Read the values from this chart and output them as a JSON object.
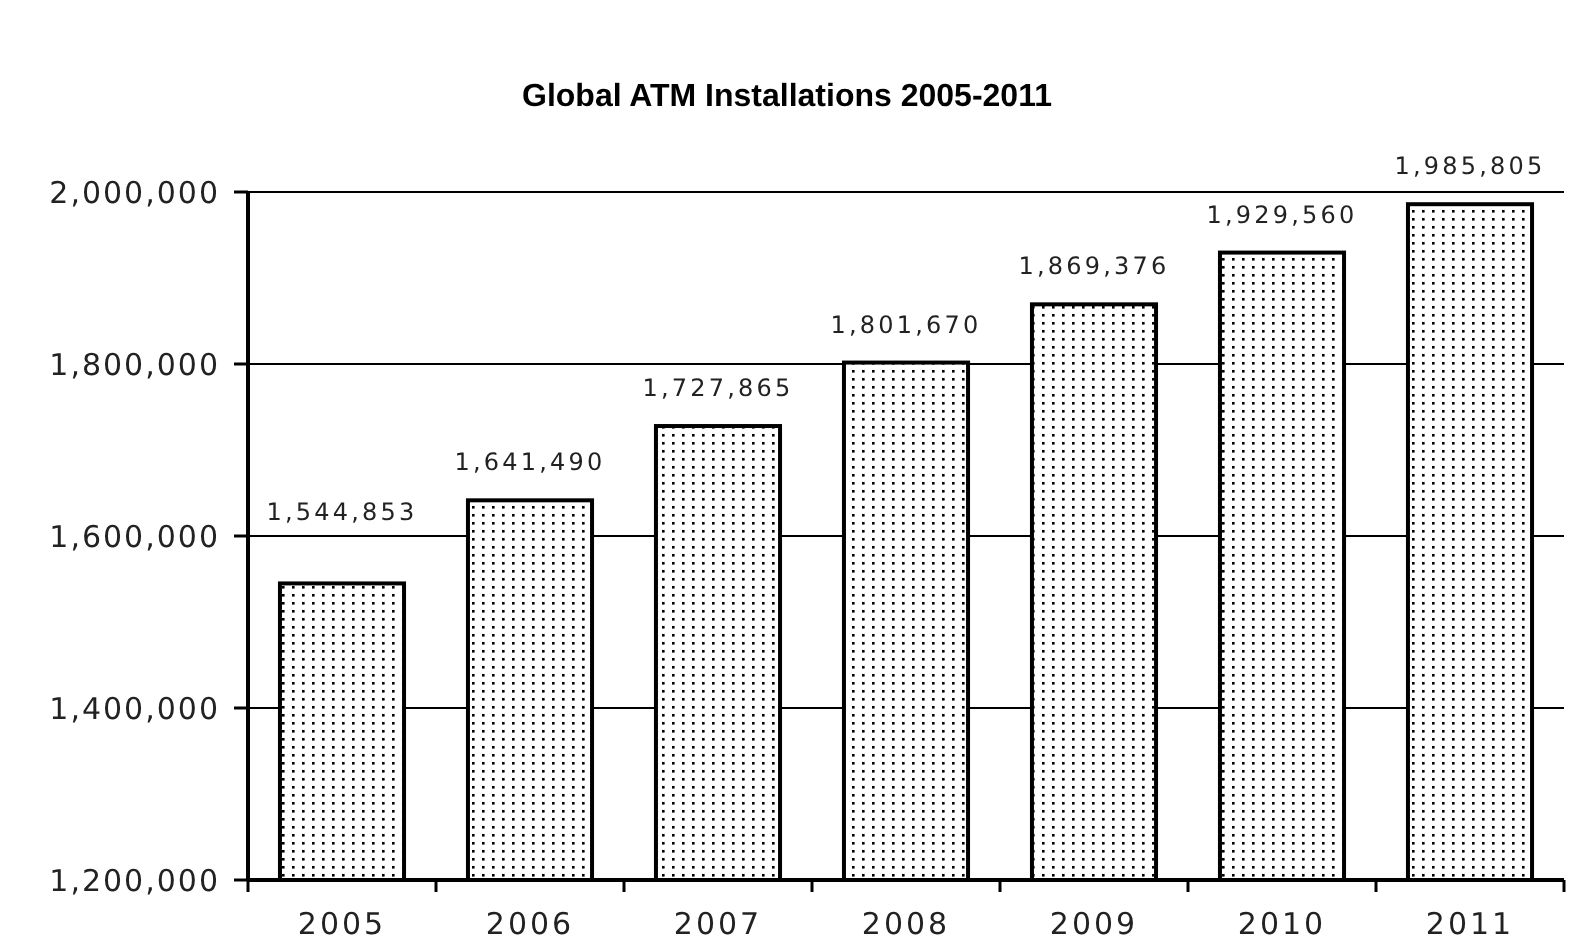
{
  "chart_data": {
    "type": "bar",
    "title": "Global ATM Installations 2005-2011",
    "categories": [
      "2005",
      "2006",
      "2007",
      "2008",
      "2009",
      "2010",
      "2011"
    ],
    "values": [
      1544853,
      1641490,
      1727865,
      1801670,
      1869376,
      1929560,
      1985805
    ],
    "value_labels": [
      "1,544,853",
      "1,641,490",
      "1,727,865",
      "1,801,670",
      "1,869,376",
      "1,929,560",
      "1,985,805"
    ],
    "color": "#000000",
    "ylim": [
      1200000,
      2000000
    ],
    "yticks": [
      {
        "value": 1200000,
        "label": "1,200,000"
      },
      {
        "value": 1400000,
        "label": "1,400,000"
      },
      {
        "value": 1600000,
        "label": "1,600,000"
      },
      {
        "value": 1800000,
        "label": "1,800,000"
      },
      {
        "value": 2000000,
        "label": "2,000,000"
      }
    ],
    "grid": "y"
  }
}
